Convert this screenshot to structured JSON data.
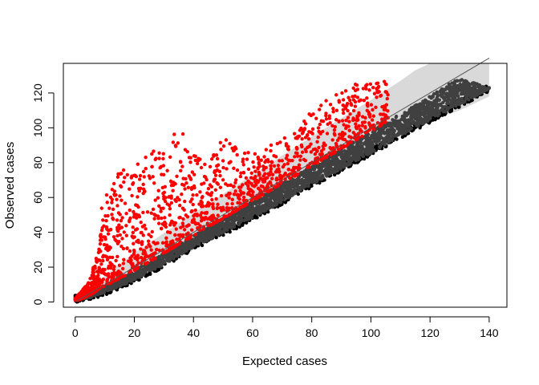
{
  "chart_data": {
    "type": "scatter",
    "title": "",
    "xlabel": "Expected cases",
    "ylabel": "Observed cases",
    "xlim": [
      -4,
      146
    ],
    "ylim": [
      -3,
      137
    ],
    "x_ticks": [
      0,
      20,
      40,
      60,
      80,
      100,
      120,
      140
    ],
    "y_ticks": [
      0,
      20,
      40,
      60,
      80,
      100,
      120
    ],
    "x_tick_labels": [
      "0",
      "20",
      "40",
      "60",
      "80",
      "100",
      "120",
      "140"
    ],
    "y_tick_labels": [
      "0",
      "20",
      "40",
      "60",
      "80",
      "100",
      "120"
    ],
    "grid": false,
    "legend": "none",
    "reference_line": {
      "slope": 1,
      "intercept": 0,
      "x_range": [
        0,
        140
      ],
      "color": "#555555"
    },
    "confidence_band": {
      "color": "#d9d9d9",
      "x": [
        0,
        20,
        40,
        60,
        80,
        100,
        110,
        115,
        120,
        130,
        140
      ],
      "lower": [
        0,
        12,
        30,
        48,
        67,
        86,
        96,
        101,
        104,
        110,
        118
      ],
      "upper": [
        2,
        28,
        51,
        73,
        95,
        116,
        127,
        133,
        137,
        137,
        137
      ]
    },
    "series": [
      {
        "color": "#000000",
        "description_points": [
          [
            1,
            0
          ],
          [
            5,
            1
          ],
          [
            10,
            4
          ],
          [
            20,
            11
          ],
          [
            30,
            20
          ],
          [
            40,
            30
          ],
          [
            50,
            38
          ],
          [
            60,
            47
          ],
          [
            70,
            56
          ],
          [
            80,
            66
          ],
          [
            90,
            75
          ],
          [
            100,
            84
          ],
          [
            110,
            94
          ],
          [
            120,
            103
          ],
          [
            130,
            112
          ],
          [
            138,
            119
          ],
          [
            140,
            121
          ]
        ]
      },
      {
        "color": "#404040",
        "description_points": [
          [
            1,
            1
          ],
          [
            5,
            4
          ],
          [
            10,
            9
          ],
          [
            20,
            18
          ],
          [
            30,
            28
          ],
          [
            40,
            38
          ],
          [
            50,
            48
          ],
          [
            60,
            58
          ],
          [
            70,
            68
          ],
          [
            80,
            78
          ],
          [
            90,
            88
          ],
          [
            100,
            98
          ],
          [
            110,
            108
          ],
          [
            120,
            118
          ],
          [
            125,
            124
          ],
          [
            130,
            128
          ],
          [
            135,
            126
          ],
          [
            140,
            122
          ]
        ]
      },
      {
        "color": "#ff0000",
        "description_points": [
          [
            0,
            2
          ],
          [
            3,
            8
          ],
          [
            5,
            14
          ],
          [
            8,
            30
          ],
          [
            9,
            55
          ],
          [
            10,
            65
          ],
          [
            12,
            72
          ],
          [
            15,
            75
          ],
          [
            18,
            78
          ],
          [
            20,
            80
          ],
          [
            25,
            85
          ],
          [
            28,
            95
          ],
          [
            30,
            90
          ],
          [
            35,
            103
          ],
          [
            40,
            85
          ],
          [
            45,
            80
          ],
          [
            50,
            95
          ],
          [
            55,
            88
          ],
          [
            60,
            85
          ],
          [
            65,
            90
          ],
          [
            70,
            95
          ],
          [
            75,
            100
          ],
          [
            80,
            110
          ],
          [
            85,
            117
          ],
          [
            90,
            120
          ],
          [
            95,
            126
          ],
          [
            100,
            128
          ],
          [
            105,
            127
          ]
        ]
      }
    ]
  }
}
